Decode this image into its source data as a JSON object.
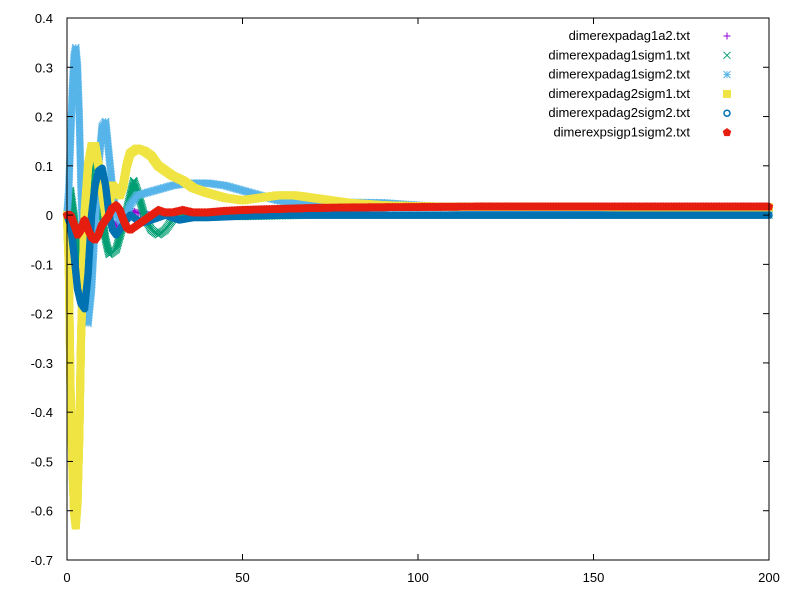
{
  "chart_data": {
    "type": "scatter",
    "title": "",
    "xlabel": "",
    "ylabel": "",
    "xlim": [
      0,
      200
    ],
    "ylim": [
      -0.7,
      0.4
    ],
    "xticks": [
      0,
      50,
      100,
      150,
      200
    ],
    "yticks": [
      -0.7,
      -0.6,
      -0.5,
      -0.4,
      -0.3,
      -0.2,
      -0.1,
      0,
      0.1,
      0.2,
      0.3,
      0.4
    ],
    "xtick_labels": [
      "0",
      "50",
      "100",
      "150",
      "200"
    ],
    "ytick_labels": [
      "-0.7",
      "-0.6",
      "-0.5",
      "-0.4",
      "-0.3",
      "-0.2",
      "-0.1",
      "0",
      "0.1",
      "0.2",
      "0.3",
      "0.4"
    ],
    "grid": false,
    "legend_position": "top-right",
    "series": [
      {
        "name": "dimerexpadag1a2.txt",
        "color": "#9400d3",
        "marker": "plus",
        "points": [
          [
            0,
            0
          ],
          [
            1,
            0.02
          ],
          [
            2,
            -0.02
          ],
          [
            3,
            -0.06
          ],
          [
            4,
            -0.12
          ],
          [
            5,
            -0.16
          ],
          [
            6,
            -0.12
          ],
          [
            7,
            -0.03
          ],
          [
            8,
            0.05
          ],
          [
            9,
            0.08
          ],
          [
            10,
            0.06
          ],
          [
            11,
            0.04
          ],
          [
            12,
            -0.01
          ],
          [
            14,
            -0.02
          ],
          [
            16,
            0.0
          ],
          [
            18,
            0.01
          ],
          [
            20,
            0.005
          ],
          [
            24,
            0.0
          ],
          [
            30,
            0.005
          ],
          [
            40,
            0.0
          ],
          [
            60,
            0.0
          ],
          [
            100,
            0.0
          ],
          [
            150,
            0.0
          ],
          [
            200,
            0.0
          ]
        ]
      },
      {
        "name": "dimerexpadag1sigm1.txt",
        "color": "#009e73",
        "marker": "cross",
        "points": [
          [
            0,
            0
          ],
          [
            1,
            0.05
          ],
          [
            2,
            0.0
          ],
          [
            3,
            -0.08
          ],
          [
            4,
            -0.14
          ],
          [
            5,
            -0.12
          ],
          [
            6,
            0.0
          ],
          [
            7,
            0.12
          ],
          [
            8,
            0.14
          ],
          [
            9,
            0.08
          ],
          [
            10,
            0.0
          ],
          [
            11,
            -0.05
          ],
          [
            12,
            -0.08
          ],
          [
            14,
            -0.07
          ],
          [
            16,
            -0.02
          ],
          [
            18,
            0.04
          ],
          [
            19,
            0.07
          ],
          [
            20,
            0.05
          ],
          [
            22,
            0.0
          ],
          [
            24,
            -0.03
          ],
          [
            26,
            -0.04
          ],
          [
            28,
            -0.03
          ],
          [
            30,
            -0.01
          ],
          [
            33,
            0.005
          ],
          [
            36,
            0.005
          ],
          [
            40,
            0.0
          ],
          [
            50,
            -0.003
          ],
          [
            70,
            0.0
          ],
          [
            100,
            0.0
          ],
          [
            150,
            0.0
          ],
          [
            200,
            0.0
          ]
        ]
      },
      {
        "name": "dimerexpadag1sigm2.txt",
        "color": "#56b4e9",
        "marker": "star",
        "points": [
          [
            0,
            0
          ],
          [
            0.5,
            0.05
          ],
          [
            1,
            0.15
          ],
          [
            1.5,
            0.25
          ],
          [
            2,
            0.32
          ],
          [
            2.5,
            0.34
          ],
          [
            3,
            0.3
          ],
          [
            3.5,
            0.2
          ],
          [
            4,
            0.05
          ],
          [
            5,
            -0.12
          ],
          [
            6,
            -0.22
          ],
          [
            7,
            -0.15
          ],
          [
            8,
            -0.02
          ],
          [
            9,
            0.1
          ],
          [
            10,
            0.18
          ],
          [
            11,
            0.19
          ],
          [
            12,
            0.12
          ],
          [
            13,
            0.05
          ],
          [
            14,
            0.0
          ],
          [
            16,
            -0.02
          ],
          [
            18,
            0.02
          ],
          [
            20,
            0.04
          ],
          [
            25,
            0.05
          ],
          [
            30,
            0.06
          ],
          [
            35,
            0.065
          ],
          [
            40,
            0.065
          ],
          [
            45,
            0.06
          ],
          [
            50,
            0.05
          ],
          [
            55,
            0.04
          ],
          [
            60,
            0.03
          ],
          [
            65,
            0.025
          ],
          [
            70,
            0.024
          ],
          [
            80,
            0.026
          ],
          [
            90,
            0.025
          ],
          [
            100,
            0.02
          ],
          [
            110,
            0.015
          ],
          [
            120,
            0.012
          ],
          [
            140,
            0.01
          ],
          [
            160,
            0.007
          ],
          [
            180,
            0.005
          ],
          [
            200,
            0.004
          ]
        ]
      },
      {
        "name": "dimerexpadag2sigm1.txt",
        "color": "#f0e442",
        "marker": "square",
        "points": [
          [
            0,
            0
          ],
          [
            0.5,
            -0.1
          ],
          [
            1,
            -0.35
          ],
          [
            1.5,
            -0.5
          ],
          [
            2,
            -0.6
          ],
          [
            2.5,
            -0.63
          ],
          [
            3,
            -0.58
          ],
          [
            3.5,
            -0.45
          ],
          [
            4,
            -0.25
          ],
          [
            5,
            0.0
          ],
          [
            6,
            0.1
          ],
          [
            7,
            0.14
          ],
          [
            8,
            0.14
          ],
          [
            9,
            0.1
          ],
          [
            10,
            0.05
          ],
          [
            11,
            0.0
          ],
          [
            12,
            0.02
          ],
          [
            13,
            0.06
          ],
          [
            14,
            0.05
          ],
          [
            15,
            0.04
          ],
          [
            16,
            0.06
          ],
          [
            17,
            0.1
          ],
          [
            18,
            0.125
          ],
          [
            20,
            0.135
          ],
          [
            22,
            0.13
          ],
          [
            24,
            0.12
          ],
          [
            26,
            0.1
          ],
          [
            28,
            0.09
          ],
          [
            30,
            0.08
          ],
          [
            33,
            0.07
          ],
          [
            36,
            0.055
          ],
          [
            40,
            0.045
          ],
          [
            45,
            0.035
          ],
          [
            50,
            0.03
          ],
          [
            55,
            0.035
          ],
          [
            60,
            0.04
          ],
          [
            65,
            0.04
          ],
          [
            70,
            0.035
          ],
          [
            75,
            0.03
          ],
          [
            80,
            0.025
          ],
          [
            90,
            0.02
          ],
          [
            100,
            0.018
          ],
          [
            110,
            0.017
          ],
          [
            120,
            0.017
          ],
          [
            140,
            0.017
          ],
          [
            160,
            0.016
          ],
          [
            180,
            0.016
          ],
          [
            200,
            0.016
          ]
        ]
      },
      {
        "name": "dimerexpadag2sigm2.txt",
        "color": "#0072b2",
        "marker": "circle",
        "points": [
          [
            0,
            0
          ],
          [
            1,
            -0.02
          ],
          [
            2,
            -0.08
          ],
          [
            3,
            -0.15
          ],
          [
            4,
            -0.18
          ],
          [
            5,
            -0.19
          ],
          [
            6,
            -0.12
          ],
          [
            7,
            0.0
          ],
          [
            8,
            0.06
          ],
          [
            9,
            0.09
          ],
          [
            10,
            0.095
          ],
          [
            11,
            0.06
          ],
          [
            12,
            0.0
          ],
          [
            13,
            -0.03
          ],
          [
            14,
            -0.04
          ],
          [
            16,
            -0.02
          ],
          [
            18,
            0.0
          ],
          [
            20,
            -0.01
          ],
          [
            22,
            -0.015
          ],
          [
            24,
            -0.01
          ],
          [
            28,
            0.0
          ],
          [
            32,
            -0.01
          ],
          [
            36,
            -0.005
          ],
          [
            40,
            -0.005
          ],
          [
            50,
            -0.002
          ],
          [
            60,
            0.0
          ],
          [
            80,
            0.0
          ],
          [
            100,
            0.0
          ],
          [
            150,
            0.0
          ],
          [
            200,
            0.0
          ]
        ]
      },
      {
        "name": "dimerexpsigp1sigm2.txt",
        "color": "#e51e10",
        "marker": "pentagon",
        "points": [
          [
            0,
            0
          ],
          [
            1,
            0.0
          ],
          [
            2,
            -0.02
          ],
          [
            3,
            -0.04
          ],
          [
            4,
            -0.03
          ],
          [
            5,
            -0.01
          ],
          [
            6,
            -0.03
          ],
          [
            7,
            -0.045
          ],
          [
            8,
            -0.05
          ],
          [
            9,
            -0.04
          ],
          [
            10,
            -0.02
          ],
          [
            11,
            -0.01
          ],
          [
            12,
            0.0
          ],
          [
            13,
            0.015
          ],
          [
            14,
            0.02
          ],
          [
            15,
            0.01
          ],
          [
            16,
            -0.01
          ],
          [
            17,
            -0.025
          ],
          [
            18,
            -0.03
          ],
          [
            20,
            -0.02
          ],
          [
            22,
            -0.01
          ],
          [
            24,
            0.0
          ],
          [
            26,
            0.01
          ],
          [
            28,
            0.005
          ],
          [
            30,
            0.005
          ],
          [
            33,
            0.01
          ],
          [
            36,
            0.005
          ],
          [
            40,
            0.005
          ],
          [
            45,
            0.008
          ],
          [
            50,
            0.01
          ],
          [
            60,
            0.012
          ],
          [
            70,
            0.014
          ],
          [
            80,
            0.015
          ],
          [
            100,
            0.016
          ],
          [
            120,
            0.017
          ],
          [
            150,
            0.017
          ],
          [
            200,
            0.017
          ]
        ]
      }
    ]
  }
}
